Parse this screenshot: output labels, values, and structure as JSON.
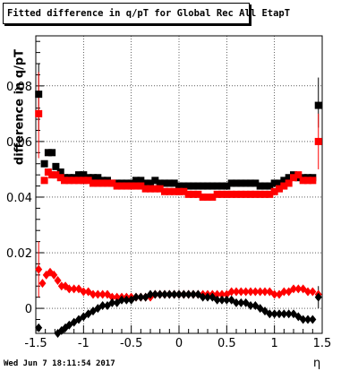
{
  "title": "Fitted difference in q/pT for Global Rec All EtapT",
  "timestamp": "Wed Jun  7 18:11:54 2017",
  "chart_data": {
    "type": "scatter",
    "title": "Fitted difference in q/pT for Global Rec All EtapT",
    "xlabel": "η",
    "ylabel": "difference in q/pT",
    "xlim": [
      -1.5,
      1.5
    ],
    "ylim": [
      -0.009,
      0.098
    ],
    "xticks": [
      "-1.5",
      "-1",
      "-0.5",
      "0",
      "0.5",
      "1",
      "1.5"
    ],
    "yticks": [
      "0",
      "0.02",
      "0.04",
      "0.06",
      "0.08"
    ],
    "grid": true,
    "series": [
      {
        "color": "#000000",
        "marker": "square",
        "points": [
          [
            -1.47,
            0.077
          ],
          [
            -1.41,
            0.052
          ],
          [
            -1.37,
            0.056
          ],
          [
            -1.33,
            0.056
          ],
          [
            -1.29,
            0.051
          ],
          [
            -1.24,
            0.049
          ],
          [
            -1.2,
            0.047
          ],
          [
            -1.15,
            0.047
          ],
          [
            -1.1,
            0.047
          ],
          [
            -1.05,
            0.048
          ],
          [
            -1.0,
            0.048
          ],
          [
            -0.95,
            0.047
          ],
          [
            -0.9,
            0.047
          ],
          [
            -0.85,
            0.047
          ],
          [
            -0.8,
            0.046
          ],
          [
            -0.75,
            0.046
          ],
          [
            -0.7,
            0.045
          ],
          [
            -0.65,
            0.045
          ],
          [
            -0.6,
            0.045
          ],
          [
            -0.55,
            0.045
          ],
          [
            -0.5,
            0.045
          ],
          [
            -0.45,
            0.046
          ],
          [
            -0.4,
            0.046
          ],
          [
            -0.35,
            0.045
          ],
          [
            -0.3,
            0.045
          ],
          [
            -0.25,
            0.046
          ],
          [
            -0.2,
            0.045
          ],
          [
            -0.15,
            0.045
          ],
          [
            -0.1,
            0.045
          ],
          [
            -0.05,
            0.045
          ],
          [
            0.0,
            0.044
          ],
          [
            0.05,
            0.044
          ],
          [
            0.1,
            0.044
          ],
          [
            0.15,
            0.044
          ],
          [
            0.2,
            0.044
          ],
          [
            0.25,
            0.044
          ],
          [
            0.3,
            0.044
          ],
          [
            0.35,
            0.044
          ],
          [
            0.4,
            0.044
          ],
          [
            0.45,
            0.044
          ],
          [
            0.5,
            0.044
          ],
          [
            0.55,
            0.045
          ],
          [
            0.6,
            0.045
          ],
          [
            0.65,
            0.045
          ],
          [
            0.7,
            0.045
          ],
          [
            0.75,
            0.045
          ],
          [
            0.8,
            0.045
          ],
          [
            0.85,
            0.044
          ],
          [
            0.9,
            0.044
          ],
          [
            0.95,
            0.044
          ],
          [
            1.0,
            0.045
          ],
          [
            1.05,
            0.045
          ],
          [
            1.1,
            0.046
          ],
          [
            1.15,
            0.047
          ],
          [
            1.2,
            0.048
          ],
          [
            1.25,
            0.047
          ],
          [
            1.3,
            0.047
          ],
          [
            1.35,
            0.047
          ],
          [
            1.4,
            0.047
          ],
          [
            1.46,
            0.073
          ]
        ]
      },
      {
        "color": "#ff0000",
        "marker": "square",
        "points": [
          [
            -1.47,
            0.07
          ],
          [
            -1.41,
            0.046
          ],
          [
            -1.37,
            0.049
          ],
          [
            -1.33,
            0.048
          ],
          [
            -1.29,
            0.048
          ],
          [
            -1.24,
            0.047
          ],
          [
            -1.2,
            0.046
          ],
          [
            -1.15,
            0.046
          ],
          [
            -1.1,
            0.046
          ],
          [
            -1.05,
            0.046
          ],
          [
            -1.0,
            0.046
          ],
          [
            -0.95,
            0.046
          ],
          [
            -0.9,
            0.045
          ],
          [
            -0.85,
            0.045
          ],
          [
            -0.8,
            0.045
          ],
          [
            -0.75,
            0.045
          ],
          [
            -0.7,
            0.045
          ],
          [
            -0.65,
            0.044
          ],
          [
            -0.6,
            0.044
          ],
          [
            -0.55,
            0.044
          ],
          [
            -0.5,
            0.044
          ],
          [
            -0.45,
            0.044
          ],
          [
            -0.4,
            0.044
          ],
          [
            -0.35,
            0.043
          ],
          [
            -0.3,
            0.043
          ],
          [
            -0.25,
            0.043
          ],
          [
            -0.2,
            0.043
          ],
          [
            -0.15,
            0.042
          ],
          [
            -0.1,
            0.042
          ],
          [
            -0.05,
            0.042
          ],
          [
            0.0,
            0.042
          ],
          [
            0.05,
            0.042
          ],
          [
            0.1,
            0.041
          ],
          [
            0.15,
            0.041
          ],
          [
            0.2,
            0.041
          ],
          [
            0.25,
            0.04
          ],
          [
            0.3,
            0.04
          ],
          [
            0.35,
            0.04
          ],
          [
            0.4,
            0.041
          ],
          [
            0.45,
            0.041
          ],
          [
            0.5,
            0.041
          ],
          [
            0.55,
            0.041
          ],
          [
            0.6,
            0.041
          ],
          [
            0.65,
            0.041
          ],
          [
            0.7,
            0.041
          ],
          [
            0.75,
            0.041
          ],
          [
            0.8,
            0.041
          ],
          [
            0.85,
            0.041
          ],
          [
            0.9,
            0.041
          ],
          [
            0.95,
            0.041
          ],
          [
            1.0,
            0.042
          ],
          [
            1.05,
            0.043
          ],
          [
            1.1,
            0.044
          ],
          [
            1.15,
            0.045
          ],
          [
            1.2,
            0.047
          ],
          [
            1.25,
            0.048
          ],
          [
            1.3,
            0.046
          ],
          [
            1.35,
            0.046
          ],
          [
            1.4,
            0.046
          ],
          [
            1.46,
            0.06
          ]
        ]
      },
      {
        "color": "#ff0000",
        "marker": "diamond",
        "points": [
          [
            -1.47,
            0.014
          ],
          [
            -1.43,
            0.009
          ],
          [
            -1.39,
            0.012
          ],
          [
            -1.35,
            0.013
          ],
          [
            -1.31,
            0.012
          ],
          [
            -1.27,
            0.01
          ],
          [
            -1.23,
            0.008
          ],
          [
            -1.19,
            0.008
          ],
          [
            -1.15,
            0.007
          ],
          [
            -1.1,
            0.007
          ],
          [
            -1.05,
            0.007
          ],
          [
            -1.0,
            0.006
          ],
          [
            -0.95,
            0.006
          ],
          [
            -0.9,
            0.005
          ],
          [
            -0.85,
            0.005
          ],
          [
            -0.8,
            0.005
          ],
          [
            -0.75,
            0.005
          ],
          [
            -0.7,
            0.004
          ],
          [
            -0.65,
            0.004
          ],
          [
            -0.6,
            0.004
          ],
          [
            -0.55,
            0.004
          ],
          [
            -0.5,
            0.004
          ],
          [
            -0.45,
            0.004
          ],
          [
            -0.4,
            0.004
          ],
          [
            -0.35,
            0.004
          ],
          [
            -0.3,
            0.004
          ],
          [
            -0.25,
            0.005
          ],
          [
            -0.2,
            0.005
          ],
          [
            -0.15,
            0.005
          ],
          [
            -0.1,
            0.005
          ],
          [
            -0.05,
            0.005
          ],
          [
            0.0,
            0.005
          ],
          [
            0.05,
            0.005
          ],
          [
            0.1,
            0.005
          ],
          [
            0.15,
            0.005
          ],
          [
            0.2,
            0.005
          ],
          [
            0.25,
            0.005
          ],
          [
            0.3,
            0.005
          ],
          [
            0.35,
            0.005
          ],
          [
            0.4,
            0.005
          ],
          [
            0.45,
            0.005
          ],
          [
            0.5,
            0.005
          ],
          [
            0.55,
            0.006
          ],
          [
            0.6,
            0.006
          ],
          [
            0.65,
            0.006
          ],
          [
            0.7,
            0.006
          ],
          [
            0.75,
            0.006
          ],
          [
            0.8,
            0.006
          ],
          [
            0.85,
            0.006
          ],
          [
            0.9,
            0.006
          ],
          [
            0.95,
            0.006
          ],
          [
            1.0,
            0.005
          ],
          [
            1.05,
            0.005
          ],
          [
            1.1,
            0.006
          ],
          [
            1.15,
            0.006
          ],
          [
            1.2,
            0.007
          ],
          [
            1.25,
            0.007
          ],
          [
            1.3,
            0.007
          ],
          [
            1.35,
            0.006
          ],
          [
            1.4,
            0.006
          ],
          [
            1.46,
            0.005
          ]
        ]
      },
      {
        "color": "#000000",
        "marker": "diamond",
        "points": [
          [
            -1.47,
            -0.007
          ],
          [
            -1.27,
            -0.009
          ],
          [
            -1.23,
            -0.008
          ],
          [
            -1.19,
            -0.007
          ],
          [
            -1.15,
            -0.006
          ],
          [
            -1.1,
            -0.005
          ],
          [
            -1.05,
            -0.004
          ],
          [
            -1.0,
            -0.003
          ],
          [
            -0.95,
            -0.002
          ],
          [
            -0.9,
            -0.001
          ],
          [
            -0.85,
            0.0
          ],
          [
            -0.8,
            0.001
          ],
          [
            -0.75,
            0.001
          ],
          [
            -0.7,
            0.002
          ],
          [
            -0.65,
            0.002
          ],
          [
            -0.6,
            0.003
          ],
          [
            -0.55,
            0.003
          ],
          [
            -0.5,
            0.003
          ],
          [
            -0.45,
            0.004
          ],
          [
            -0.4,
            0.004
          ],
          [
            -0.35,
            0.004
          ],
          [
            -0.3,
            0.005
          ],
          [
            -0.25,
            0.005
          ],
          [
            -0.2,
            0.005
          ],
          [
            -0.15,
            0.005
          ],
          [
            -0.1,
            0.005
          ],
          [
            -0.05,
            0.005
          ],
          [
            0.0,
            0.005
          ],
          [
            0.05,
            0.005
          ],
          [
            0.1,
            0.005
          ],
          [
            0.15,
            0.005
          ],
          [
            0.2,
            0.005
          ],
          [
            0.25,
            0.004
          ],
          [
            0.3,
            0.004
          ],
          [
            0.35,
            0.004
          ],
          [
            0.4,
            0.003
          ],
          [
            0.45,
            0.003
          ],
          [
            0.5,
            0.003
          ],
          [
            0.55,
            0.003
          ],
          [
            0.6,
            0.002
          ],
          [
            0.65,
            0.002
          ],
          [
            0.7,
            0.002
          ],
          [
            0.75,
            0.001
          ],
          [
            0.8,
            0.001
          ],
          [
            0.85,
            0.0
          ],
          [
            0.9,
            -0.001
          ],
          [
            0.95,
            -0.002
          ],
          [
            1.0,
            -0.002
          ],
          [
            1.05,
            -0.002
          ],
          [
            1.1,
            -0.002
          ],
          [
            1.15,
            -0.002
          ],
          [
            1.2,
            -0.002
          ],
          [
            1.25,
            -0.003
          ],
          [
            1.3,
            -0.004
          ],
          [
            1.35,
            -0.004
          ],
          [
            1.4,
            -0.004
          ],
          [
            1.46,
            0.004
          ]
        ]
      }
    ],
    "error_bars": [
      {
        "series": 0,
        "x": -1.47,
        "low": 0.064,
        "high": 0.088
      },
      {
        "series": 1,
        "x": -1.47,
        "low": 0.054,
        "high": 0.085
      },
      {
        "series": 2,
        "x": -1.47,
        "low": 0.004,
        "high": 0.024
      },
      {
        "series": 0,
        "x": 1.46,
        "low": 0.065,
        "high": 0.083
      },
      {
        "series": 1,
        "x": 1.46,
        "low": 0.05,
        "high": 0.07
      },
      {
        "series": 3,
        "x": 1.46,
        "low": 0.0,
        "high": 0.008
      }
    ]
  }
}
